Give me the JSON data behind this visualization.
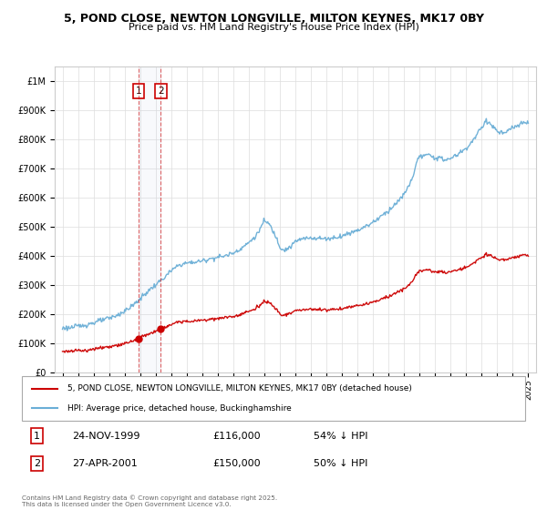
{
  "title_line1": "5, POND CLOSE, NEWTON LONGVILLE, MILTON KEYNES, MK17 0BY",
  "title_line2": "Price paid vs. HM Land Registry's House Price Index (HPI)",
  "legend_entry1": "5, POND CLOSE, NEWTON LONGVILLE, MILTON KEYNES, MK17 0BY (detached house)",
  "legend_entry2": "HPI: Average price, detached house, Buckinghamshire",
  "transaction1_date": "24-NOV-1999",
  "transaction1_price": "£116,000",
  "transaction1_hpi": "54% ↓ HPI",
  "transaction2_date": "27-APR-2001",
  "transaction2_price": "£150,000",
  "transaction2_hpi": "50% ↓ HPI",
  "footnote": "Contains HM Land Registry data © Crown copyright and database right 2025.\nThis data is licensed under the Open Government Licence v3.0.",
  "hpi_color": "#6aaed6",
  "property_color": "#cc0000",
  "transaction_color": "#cc0000",
  "ylim_max": 1050000,
  "ylim_min": 0,
  "transaction1_year": 1999.9,
  "transaction2_year": 2001.33,
  "transaction1_price_val": 116000,
  "transaction2_price_val": 150000
}
